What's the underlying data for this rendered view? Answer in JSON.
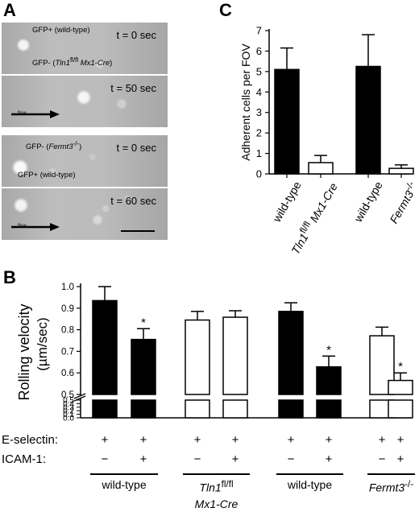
{
  "panels": {
    "A": {
      "label": "A",
      "frames": [
        {
          "time": "t = 0 sec",
          "labels": [
            {
              "html": "GFP+ (wild-type)"
            },
            {
              "html": "GFP- (<i>Tln1</i><sup>fl/fl</sup> <i>Mx1-Cre</i>)"
            }
          ],
          "show_flow": false,
          "show_scale": false
        },
        {
          "time": "t = 50 sec",
          "labels": [],
          "show_flow": true,
          "show_scale": false
        },
        {
          "time": "t = 0 sec",
          "labels": [
            {
              "html": "GFP- (<i>Fermt3</i><sup>-/-</sup>)"
            },
            {
              "html": "GFP+ (wild-type)"
            }
          ],
          "show_flow": false,
          "show_scale": false
        },
        {
          "time": "t = 60 sec",
          "labels": [],
          "show_flow": true,
          "show_scale": true
        }
      ],
      "flow_label": "flow"
    },
    "B": {
      "label": "B"
    },
    "C": {
      "label": "C"
    }
  },
  "chart_data": [
    {
      "panel": "C",
      "type": "bar",
      "ylabel": "Adherent cells per FOV",
      "ylim": [
        0,
        7
      ],
      "yticks": [
        0,
        1,
        2,
        3,
        4,
        5,
        6,
        7
      ],
      "categories_html": [
        "wild-type",
        "<i>Tln1</i><sup>fl/fl</sup> <i>Mx1-Cre</i>",
        "wild-type",
        "<i>Fermt3</i><sup>-/-</sup>"
      ],
      "values": [
        5.1,
        0.55,
        5.25,
        0.27
      ],
      "errors": [
        1.05,
        0.35,
        1.55,
        0.17
      ],
      "fills": [
        "#000000",
        "#ffffff",
        "#000000",
        "#ffffff"
      ]
    },
    {
      "panel": "B",
      "type": "bar",
      "ylabel_main": "Rolling velocity",
      "ylabel_unit": "(µm/sec)",
      "axis_break": true,
      "yticks_lower": [
        "0.0",
        "0.1",
        "0.2",
        "0.3",
        "0.4",
        "0.5"
      ],
      "yticks_upper": [
        "0.5",
        "0.6",
        "0.7",
        "0.8",
        "0.9",
        "1.0"
      ],
      "ylim_upper": [
        0.5,
        1.0
      ],
      "values": [
        0.935,
        0.755,
        0.845,
        0.858,
        0.885,
        0.628,
        0.772,
        0.565
      ],
      "errors": [
        0.065,
        0.05,
        0.04,
        0.03,
        0.04,
        0.05,
        0.04,
        0.035
      ],
      "fills": [
        "#000000",
        "#000000",
        "#ffffff",
        "#ffffff",
        "#000000",
        "#000000",
        "#ffffff",
        "#ffffff"
      ],
      "significant": [
        false,
        true,
        false,
        false,
        false,
        true,
        false,
        true
      ],
      "star": "*",
      "rows": [
        {
          "label": "E-selectin:",
          "symbols": [
            "+",
            "+",
            "+",
            "+",
            "+",
            "+",
            "+",
            "+"
          ]
        },
        {
          "label": "ICAM-1:",
          "symbols": [
            "−",
            "+",
            "−",
            "+",
            "−",
            "+",
            "−",
            "+"
          ]
        }
      ],
      "groups_html": [
        "wild-type",
        "<i>Tln1</i><sup>fl/fl</sup><br><i>Mx1-Cre</i>",
        "wild-type",
        "<i>Fermt3</i><sup>-/-</sup>"
      ]
    }
  ]
}
